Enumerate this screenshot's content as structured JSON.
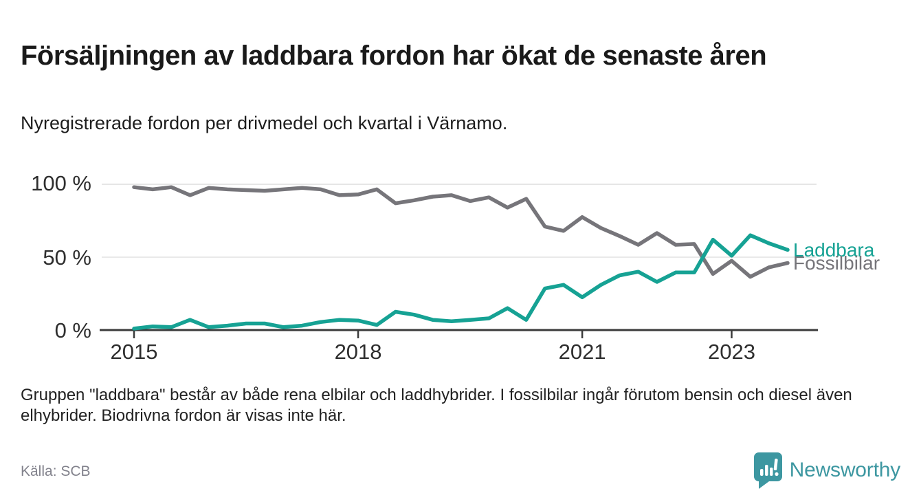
{
  "header": {
    "title": "Försäljningen av laddbara fordon har ökat de senaste åren",
    "subtitle": "Nyregistrerade fordon per drivmedel och kvartal i Värnamo."
  },
  "chart_data": {
    "type": "line",
    "x_unit": "quarter",
    "x_range": [
      "2015-Q1",
      "2023-Q4"
    ],
    "ylim": [
      0,
      100
    ],
    "grid": "horizontal-only",
    "legend_position": "right-of-line-ends",
    "y_ticks": [
      {
        "label": "100 %",
        "value": 100
      },
      {
        "label": "50 %",
        "value": 50
      },
      {
        "label": "0 %",
        "value": 0
      }
    ],
    "x_ticks": [
      {
        "label": "2015",
        "quarter_index": 0
      },
      {
        "label": "2018",
        "quarter_index": 12
      },
      {
        "label": "2021",
        "quarter_index": 24
      },
      {
        "label": "2023",
        "quarter_index": 32
      }
    ],
    "series": [
      {
        "name": "Laddbara",
        "color": "#16a294",
        "values": [
          1,
          2.5,
          2,
          7,
          2,
          3,
          4.5,
          4.5,
          2,
          3,
          5.5,
          7,
          6.5,
          3.5,
          12.5,
          10.5,
          7,
          6,
          7,
          8,
          15,
          7,
          28.5,
          31,
          22.5,
          31,
          37.5,
          40,
          33,
          39.5,
          39.5,
          62,
          51,
          65,
          59.5,
          55
        ]
      },
      {
        "name": "Fossilbilar",
        "color": "#76757a",
        "values": [
          98,
          96.5,
          98,
          92.5,
          97.5,
          96.5,
          96,
          95.5,
          96.5,
          97.5,
          96.5,
          92.5,
          93,
          96.5,
          87,
          89,
          91.5,
          92.5,
          88.5,
          91,
          84,
          90,
          71,
          68,
          77.5,
          70,
          64.5,
          58.5,
          66.5,
          58.5,
          59,
          38.5,
          47.5,
          36.5,
          43,
          46
        ]
      }
    ]
  },
  "footer": {
    "note": "Gruppen \"laddbara\" består av både rena elbilar och laddhybrider. I fossilbilar ingår förutom bensin och diesel även elhybrider. Biodrivna fordon är visas inte här.",
    "source": "Källa: SCB",
    "brand_name": "Newsworthy",
    "brand_icon": "newsworthy-bubble-chart-icon",
    "brand_color": "#3d97a1"
  }
}
